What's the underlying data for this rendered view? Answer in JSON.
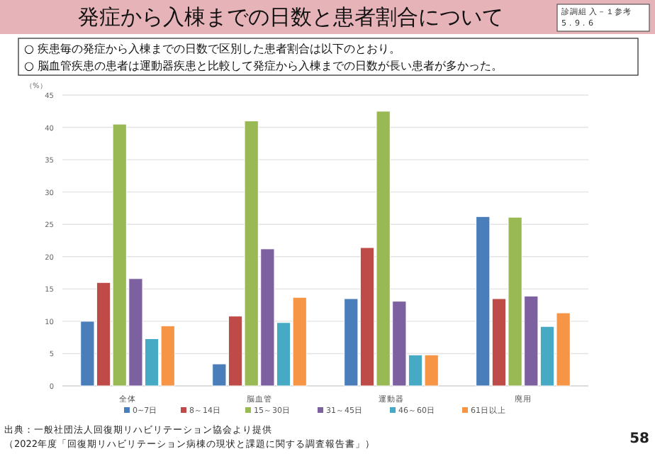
{
  "chart_data": {
    "type": "bar",
    "title": "発症から入棟までの日数と患者割合について",
    "subtitle": "診調組 入－１参考 5．9．6",
    "ylabel": "（%）",
    "categories": [
      "全体",
      "脳血管",
      "運動器",
      "廃用"
    ],
    "series": [
      {
        "name": "0~7日",
        "color": "#4a7ebb",
        "values": [
          10,
          3.4,
          13.5,
          26.2
        ]
      },
      {
        "name": "8～14日",
        "color": "#be4b48",
        "values": [
          16,
          10.8,
          21.4,
          13.5
        ]
      },
      {
        "name": "15～30日",
        "color": "#98b954",
        "values": [
          40.5,
          41,
          42.5,
          26.1
        ]
      },
      {
        "name": "31～45日",
        "color": "#7d60a0",
        "values": [
          16.6,
          21.2,
          13.1,
          13.9
        ]
      },
      {
        "name": "46～60日",
        "color": "#46aac5",
        "values": [
          7.3,
          9.8,
          4.8,
          9.2
        ]
      },
      {
        "name": "61日以上",
        "color": "#f69545",
        "values": [
          9.3,
          13.7,
          4.8,
          11.3
        ]
      }
    ],
    "ylim": [
      0,
      45
    ],
    "yticks": [
      0,
      5,
      10,
      15,
      20,
      25,
      30,
      35,
      40,
      45
    ],
    "grid": "y",
    "legend": "bottom",
    "annotations": [
      "○ 疾患毎の発症から入棟までの日数で区別した患者割合は以下のとおり。",
      "○ 脳血管疾患の患者は運動器疾患と比較して発症から入棟までの日数が長い患者が多かった。",
      "出典：一般社団法人回復期リハビリテーション協会より提供",
      "（2022年度「回復期リハビリテーション病棟の現状と課題に関する調査報告書」）",
      "58"
    ]
  }
}
